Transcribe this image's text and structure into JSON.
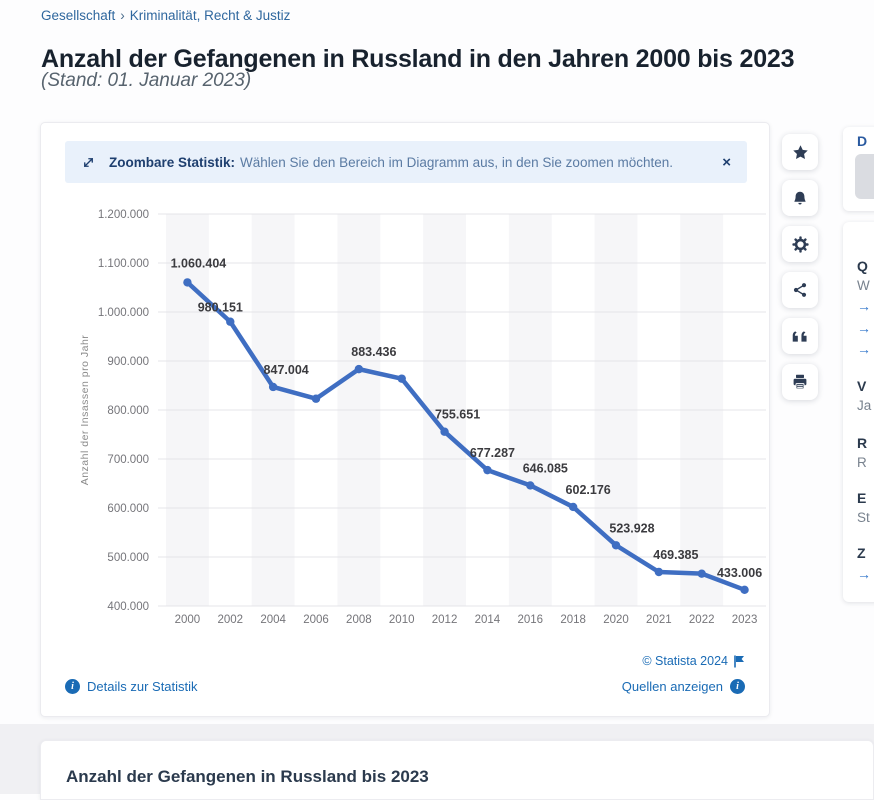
{
  "breadcrumb": {
    "items": [
      "Gesellschaft",
      "Kriminalität, Recht & Justiz"
    ],
    "separator": "›"
  },
  "header": {
    "title": "Anzahl der Gefangenen in Russland in den Jahren 2000 bis 2023",
    "subtitle": "(Stand: 01. Januar 2023)"
  },
  "banner": {
    "icon": "zoom-expand-icon",
    "bold_text": "Zoombare Statistik:",
    "text": "Wählen Sie den Bereich im Diagramm aus, in den Sie zoomen möchten.",
    "close_label": "×"
  },
  "chart_data": {
    "type": "line",
    "title": "",
    "ylabel": "Anzahl der Insassen pro Jahr",
    "xlabel": "",
    "categories": [
      "2000",
      "2002",
      "2004",
      "2006",
      "2008",
      "2010",
      "2012",
      "2014",
      "2016",
      "2018",
      "2020",
      "2021",
      "2022",
      "2023"
    ],
    "values": [
      1060404,
      980151,
      847004,
      823000,
      883436,
      864000,
      755651,
      677287,
      646085,
      602176,
      523928,
      469385,
      466000,
      433006
    ],
    "point_labels": [
      "1.060.404",
      "980.151",
      "847.004",
      null,
      "883.436",
      null,
      "755.651",
      "677.287",
      "646.085",
      "602.176",
      "523.928",
      "469.385",
      null,
      "433.006"
    ],
    "ylim": [
      400000,
      1200000
    ],
    "ytick_labels": [
      "400.000",
      "500.000",
      "600.000",
      "700.000",
      "800.000",
      "900.000",
      "1.000.000",
      "1.100.000",
      "1.200.000"
    ],
    "grid": true,
    "legend": "none",
    "line_color": "#3f6ec2",
    "label_color": "#3b3b3f",
    "tick_color": "#75757a",
    "band_color": "#f6f6f8",
    "grid_color": "#e4e4e8"
  },
  "chart_footer": {
    "copyright": "© Statista 2024",
    "flag_icon": "flag-icon",
    "details_link": "Details zur Statistik",
    "sources_link": "Quellen anzeigen"
  },
  "action_rail": {
    "buttons": [
      "favorite-star",
      "notification-bell",
      "settings-gear",
      "share",
      "cite-quote",
      "print"
    ]
  },
  "right_panel": {
    "download_card": {
      "heading_fragment": "D"
    },
    "info_card": {
      "rows": [
        {
          "style": "h",
          "text": "Q"
        },
        {
          "style": "t",
          "text": "W"
        },
        {
          "style": "l",
          "text": "→"
        },
        {
          "style": "l",
          "text": "→"
        },
        {
          "style": "l",
          "text": "→"
        },
        {
          "style": "h",
          "text": "V"
        },
        {
          "style": "t",
          "text": "Ja"
        },
        {
          "style": "h",
          "text": "R"
        },
        {
          "style": "t",
          "text": "R"
        },
        {
          "style": "h",
          "text": "E"
        },
        {
          "style": "t",
          "text": "St"
        },
        {
          "style": "h",
          "text": "Z"
        },
        {
          "style": "l",
          "text": "→"
        }
      ]
    }
  },
  "bottom_card": {
    "title": "Anzahl der Gefangenen in Russland bis 2023"
  }
}
